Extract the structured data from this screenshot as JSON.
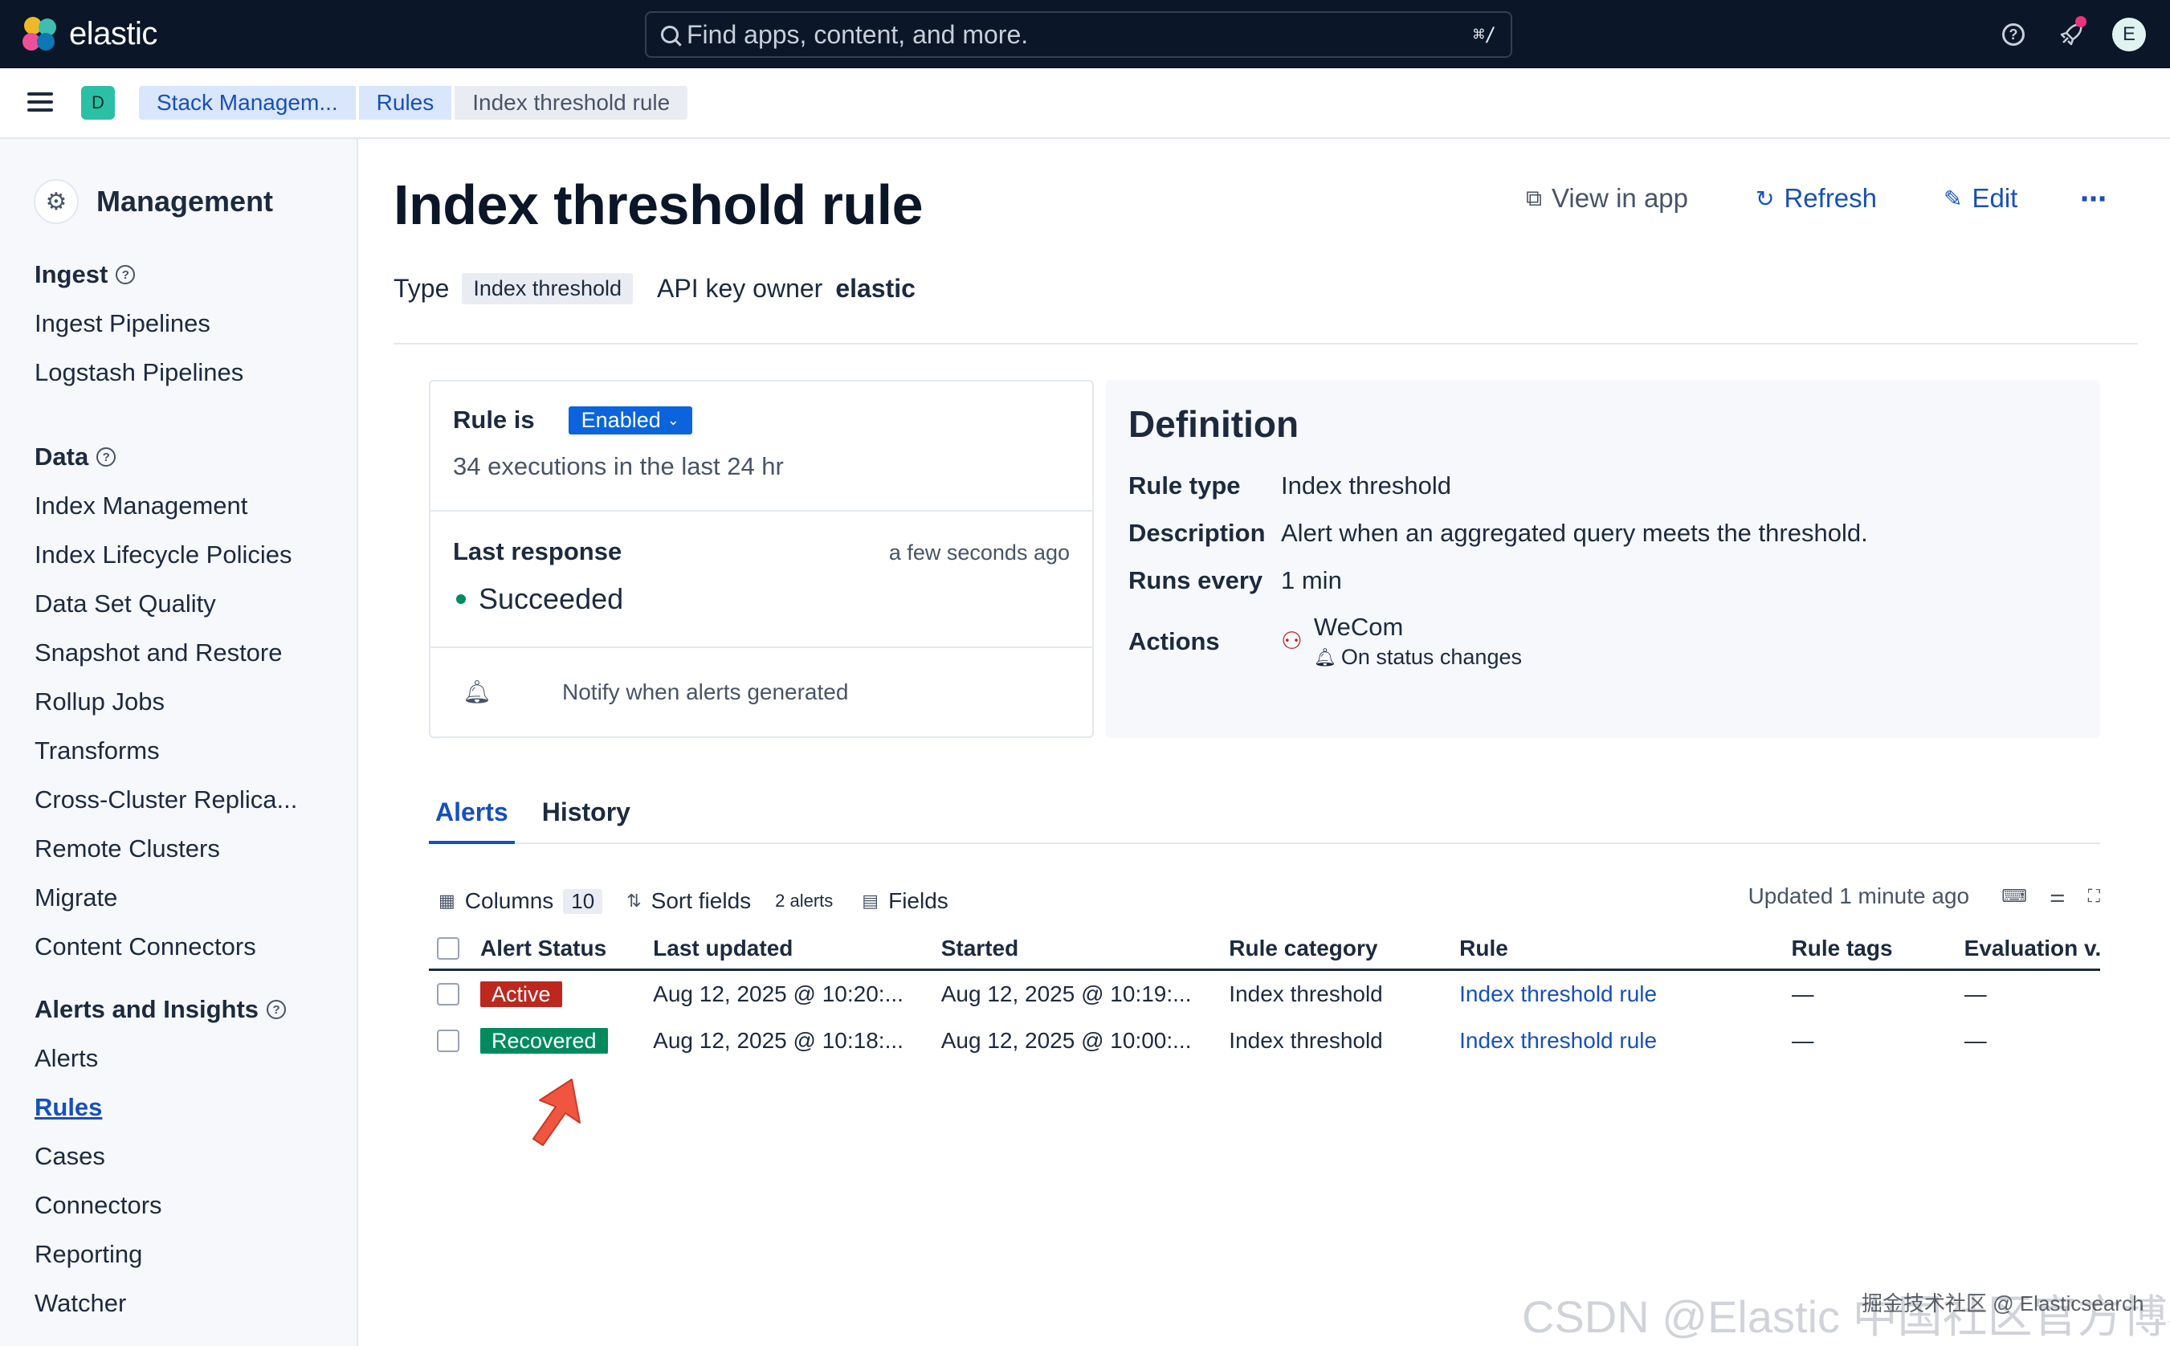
{
  "topbar": {
    "brand": "elastic",
    "search_placeholder": "Find apps, content, and more.",
    "search_shortcut": "⌘/",
    "avatar_initial": "E"
  },
  "breadcrumb": {
    "space_initial": "D",
    "items": [
      "Stack Managem...",
      "Rules",
      "Index threshold rule"
    ]
  },
  "sidebar": {
    "title": "Management",
    "groups": [
      {
        "label": "Ingest",
        "items": [
          "Ingest Pipelines",
          "Logstash Pipelines"
        ]
      },
      {
        "label": "Data",
        "items": [
          "Index Management",
          "Index Lifecycle Policies",
          "Data Set Quality",
          "Snapshot and Restore",
          "Rollup Jobs",
          "Transforms",
          "Cross-Cluster Replica...",
          "Remote Clusters",
          "Migrate",
          "Content Connectors"
        ]
      },
      {
        "label": "Alerts and Insights",
        "items": [
          "Alerts",
          "Rules",
          "Cases",
          "Connectors",
          "Reporting",
          "Watcher"
        ],
        "active": "Rules"
      }
    ]
  },
  "page": {
    "title": "Index threshold rule",
    "actions": {
      "view_in_app": "View in app",
      "refresh": "Refresh",
      "edit": "Edit",
      "more": "⋯"
    },
    "type_label": "Type",
    "type_value": "Index threshold",
    "api_key_owner_label": "API key owner",
    "api_key_owner_value": "elastic"
  },
  "status_card": {
    "rule_is_label": "Rule is",
    "enabled_label": "Enabled",
    "executions": "34 executions in the last 24 hr",
    "last_response_label": "Last response",
    "last_response_time": "a few seconds ago",
    "last_response_value": "Succeeded",
    "notify": "Notify when alerts generated"
  },
  "definition": {
    "title": "Definition",
    "rule_type_label": "Rule type",
    "rule_type_value": "Index threshold",
    "description_label": "Description",
    "description_value": "Alert when an aggregated query meets the threshold.",
    "runs_every_label": "Runs every",
    "runs_every_value": "1 min",
    "actions_label": "Actions",
    "action_name": "WeCom",
    "action_frequency": "On status changes"
  },
  "tabs": [
    "Alerts",
    "History"
  ],
  "toolbar": {
    "columns_label": "Columns",
    "columns_count": "10",
    "sort_fields": "Sort fields",
    "alert_count": "2 alerts",
    "fields": "Fields",
    "updated": "Updated 1 minute ago"
  },
  "table": {
    "headers": [
      "Alert Status",
      "Last updated",
      "Started",
      "Rule category",
      "Rule",
      "Rule tags",
      "Evaluation v."
    ],
    "rows": [
      {
        "status": "Active",
        "last_updated": "Aug 12, 2025 @ 10:20:...",
        "started": "Aug 12, 2025 @ 10:19:...",
        "category": "Index threshold",
        "rule": "Index threshold rule",
        "tags": "—",
        "evaluation": "—"
      },
      {
        "status": "Recovered",
        "last_updated": "Aug 12, 2025 @ 10:18:...",
        "started": "Aug 12, 2025 @ 10:00:...",
        "category": "Index threshold",
        "rule": "Index threshold rule",
        "tags": "—",
        "evaluation": "—"
      }
    ]
  },
  "watermark": "CSDN @Elastic 中国社区官方博客",
  "watermark2": "掘金技术社区 @ Elasticsearch",
  "colors": {
    "topbar": "#0b1628",
    "link": "#1750ba",
    "active_badge": "#bd271e",
    "recovered_badge": "#008a5e",
    "enabled_pill": "#0b64dd"
  }
}
